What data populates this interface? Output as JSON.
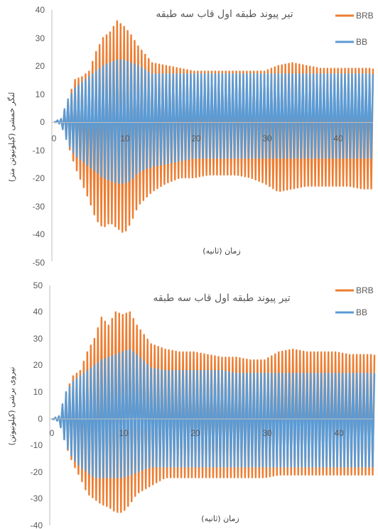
{
  "chart_data": [
    {
      "type": "line",
      "title": "تیر پیوند طبقه اول قاب سه طبقه",
      "xlabel": "زمان (ثانیه)",
      "ylabel": "لنگر خمشی (کیلونیوتن متر)",
      "xlim": [
        0,
        45
      ],
      "ylim": [
        -50,
        40
      ],
      "x_ticks": [
        0,
        10,
        20,
        30,
        40
      ],
      "y_ticks": [
        40,
        30,
        20,
        10,
        0,
        -10,
        -20,
        -30,
        -40,
        -50
      ],
      "grid": false,
      "legend_position": "top-right",
      "cycle_period": 0.5,
      "series": [
        {
          "name": "BRB",
          "color": "#ED7D31",
          "envelope": {
            "t": [
              0,
              1,
              2,
              3,
              4,
              5,
              6,
              7,
              8,
              9,
              10,
              11,
              12,
              14,
              16,
              18,
              20,
              22,
              24,
              26,
              28,
              30,
              32,
              34,
              36,
              38,
              40,
              42,
              44,
              45
            ],
            "max": [
              0,
              1,
              8,
              15,
              16,
              18,
              25,
              30,
              32,
              36,
              34,
              31,
              27,
              21,
              20,
              19,
              18,
              18,
              18,
              18,
              18,
              18,
              20,
              21,
              20,
              19,
              19,
              19,
              19,
              19
            ],
            "min": [
              0,
              -1,
              -8,
              -16,
              -22,
              -28,
              -35,
              -38,
              -36,
              -38,
              -40,
              -36,
              -30,
              -25,
              -22,
              -20,
              -20,
              -19,
              -19,
              -19,
              -20,
              -22,
              -25,
              -24,
              -23,
              -23,
              -23,
              -23,
              -24,
              -24
            ]
          }
        },
        {
          "name": "BB",
          "color": "#5B9BD5",
          "envelope": {
            "t": [
              0,
              1,
              2,
              3,
              4,
              5,
              6,
              7,
              8,
              9,
              10,
              11,
              12,
              14,
              16,
              18,
              20,
              22,
              24,
              26,
              28,
              30,
              32,
              34,
              36,
              38,
              40,
              42,
              44,
              45
            ],
            "max": [
              0,
              1,
              8,
              12,
              14,
              16,
              18,
              20,
              21,
              22,
              22,
              21,
              20,
              17,
              17,
              17,
              17,
              17,
              17,
              17,
              17,
              17,
              17,
              17,
              17,
              17,
              17,
              17,
              17,
              17
            ],
            "min": [
              0,
              -1,
              -8,
              -12,
              -14,
              -16,
              -18,
              -20,
              -21,
              -22,
              -22,
              -21,
              -18,
              -16,
              -15,
              -14,
              -13,
              -13,
              -13,
              -13,
              -13,
              -13,
              -13,
              -13,
              -13,
              -13,
              -13,
              -13,
              -13,
              -13
            ]
          }
        }
      ]
    },
    {
      "type": "line",
      "title": "تیر پیوند طبقه اول قاب سه طبقه",
      "xlabel": "زمان (ثانیه)",
      "ylabel": "نیروی برشی (کیلونیوتن)",
      "xlim": [
        0,
        45
      ],
      "ylim": [
        -40,
        50
      ],
      "x_ticks": [
        0,
        10,
        20,
        30,
        40
      ],
      "y_ticks": [
        50,
        40,
        30,
        20,
        10,
        0,
        -10,
        -20,
        -30,
        -40
      ],
      "grid": false,
      "legend_position": "top-right",
      "cycle_period": 0.5,
      "series": [
        {
          "name": "BRB",
          "color": "#ED7D31",
          "envelope": {
            "t": [
              0,
              1,
              2,
              3,
              4,
              5,
              6,
              7,
              8,
              9,
              10,
              11,
              12,
              14,
              16,
              18,
              20,
              22,
              24,
              26,
              28,
              30,
              32,
              34,
              36,
              38,
              40,
              42,
              44,
              45
            ],
            "max": [
              0,
              1,
              10,
              16,
              18,
              25,
              30,
              38,
              35,
              40,
              39,
              40,
              35,
              28,
              26,
              25,
              25,
              24,
              23,
              23,
              22,
              22,
              25,
              26,
              25,
              25,
              25,
              24,
              24,
              24
            ],
            "min": [
              0,
              -1,
              -10,
              -17,
              -22,
              -28,
              -30,
              -32,
              -33,
              -35,
              -35,
              -32,
              -28,
              -25,
              -22,
              -22,
              -22,
              -22,
              -22,
              -22,
              -22,
              -22,
              -21,
              -21,
              -21,
              -21,
              -21,
              -21,
              -21,
              -21
            ]
          }
        },
        {
          "name": "BB",
          "color": "#5B9BD5",
          "envelope": {
            "t": [
              0,
              1,
              2,
              3,
              4,
              5,
              6,
              7,
              8,
              9,
              10,
              11,
              12,
              14,
              16,
              18,
              20,
              22,
              24,
              26,
              28,
              30,
              32,
              34,
              36,
              38,
              40,
              42,
              44,
              45
            ],
            "max": [
              0,
              1,
              10,
              14,
              16,
              18,
              20,
              22,
              23,
              24,
              25,
              26,
              24,
              19,
              18,
              18,
              18,
              18,
              18,
              17,
              17,
              17,
              17,
              17,
              17,
              17,
              17,
              17,
              17,
              17
            ],
            "min": [
              0,
              -1,
              -10,
              -15,
              -18,
              -20,
              -22,
              -22,
              -22,
              -22,
              -22,
              -21,
              -20,
              -18,
              -18,
              -18,
              -18,
              -18,
              -18,
              -18,
              -18,
              -18,
              -18,
              -18,
              -18,
              -18,
              -18,
              -18,
              -18,
              -18
            ]
          }
        }
      ]
    }
  ]
}
